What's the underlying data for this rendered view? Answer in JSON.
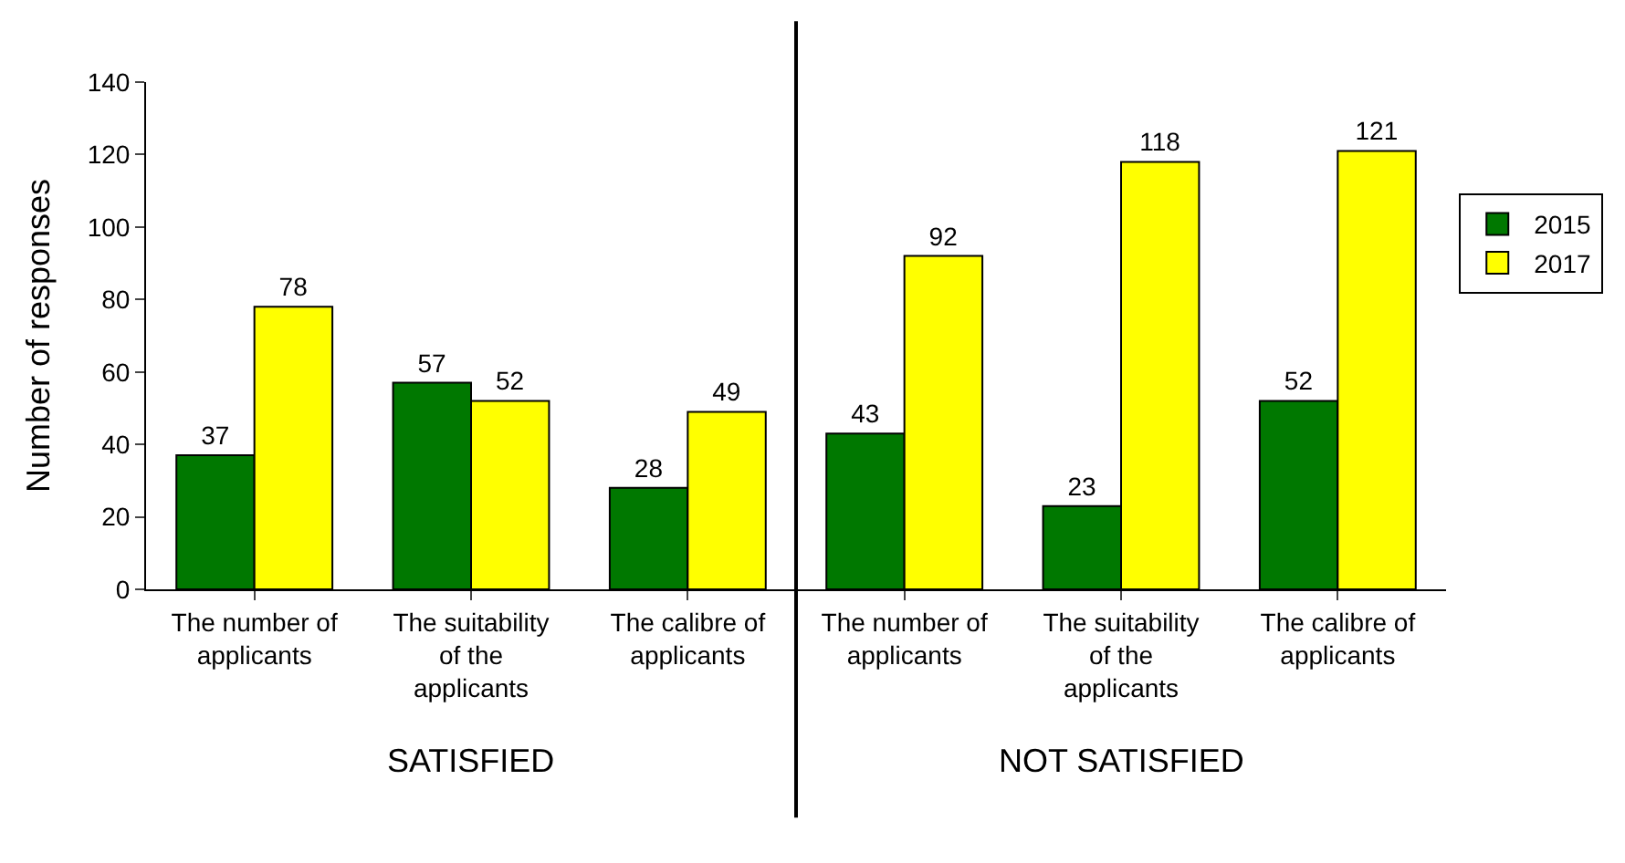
{
  "chart_data": {
    "type": "bar",
    "ylabel": "Number of responses",
    "categories": [
      "The number of applicants",
      "The suitability of the applicants",
      "The calibre of applicants",
      "The number of applicants",
      "The suitability of the applicants",
      "The calibre of applicants"
    ],
    "series": [
      {
        "name": "2015",
        "color": "#007800",
        "values": [
          37,
          57,
          28,
          43,
          23,
          52
        ]
      },
      {
        "name": "2017",
        "color": "#ffff00",
        "values": [
          78,
          52,
          49,
          92,
          118,
          121
        ]
      }
    ],
    "ylim": [
      0,
      140
    ],
    "yticks": [
      0,
      20,
      40,
      60,
      80,
      100,
      120,
      140
    ],
    "data_labels": true,
    "legend": "right",
    "annotations": [
      "SATISFIED",
      "NOT SATISFIED"
    ]
  }
}
